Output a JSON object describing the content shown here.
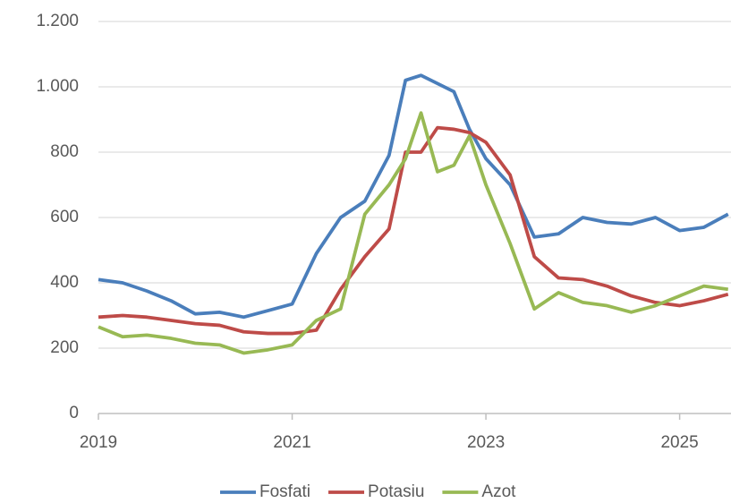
{
  "chart_data": {
    "type": "line",
    "x": [
      2019,
      2019.25,
      2019.5,
      2019.75,
      2020,
      2020.25,
      2020.5,
      2020.75,
      2021,
      2021.25,
      2021.5,
      2021.75,
      2022,
      2022.17,
      2022.33,
      2022.5,
      2022.67,
      2022.83,
      2023,
      2023.25,
      2023.5,
      2023.75,
      2024,
      2024.25,
      2024.5,
      2024.75,
      2025,
      2025.25,
      2025.5
    ],
    "series": [
      {
        "name": "Fosfati",
        "color": "#4a7ebb",
        "values": [
          410,
          400,
          375,
          345,
          305,
          310,
          295,
          315,
          335,
          490,
          600,
          650,
          790,
          1020,
          1035,
          1010,
          985,
          870,
          780,
          700,
          540,
          550,
          600,
          585,
          580,
          600,
          560,
          570,
          610
        ]
      },
      {
        "name": "Potasiu",
        "color": "#be4b48",
        "values": [
          295,
          300,
          295,
          285,
          275,
          270,
          250,
          245,
          245,
          255,
          380,
          480,
          565,
          800,
          800,
          875,
          870,
          860,
          830,
          730,
          480,
          415,
          410,
          390,
          360,
          340,
          330,
          345,
          365
        ]
      },
      {
        "name": "Azot",
        "color": "#98b954",
        "values": [
          265,
          235,
          240,
          230,
          215,
          210,
          185,
          195,
          210,
          285,
          320,
          610,
          700,
          780,
          920,
          740,
          760,
          850,
          700,
          520,
          320,
          370,
          340,
          330,
          310,
          330,
          360,
          390,
          380
        ]
      }
    ],
    "xlim": [
      2019,
      2025.53
    ],
    "xticks": [
      2019,
      2021,
      2023,
      2025
    ],
    "ylim": [
      0,
      1200
    ],
    "yticks": [
      0,
      200,
      400,
      600,
      800,
      {
        "value": 1000,
        "label": "1.000"
      },
      {
        "value": 1200,
        "label": "1.200"
      }
    ],
    "grid": true,
    "legend": "bottom"
  }
}
